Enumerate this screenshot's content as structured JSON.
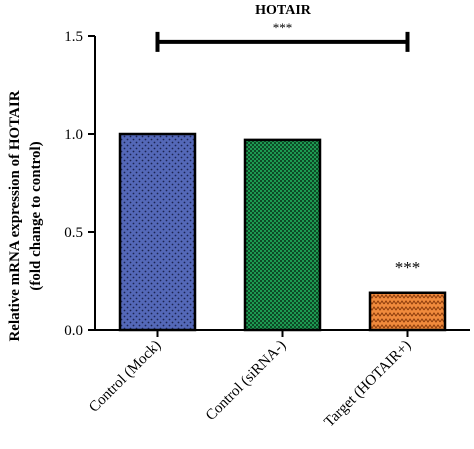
{
  "chart_data": {
    "type": "bar",
    "title": "HOTAIR",
    "ylabel_line1": "Relative mRNA expression of HOTAIR",
    "ylabel_line2": "(fold change to control)",
    "xlabel": "",
    "ylim": [
      0,
      1.5
    ],
    "yticks": [
      "0.0",
      "0.5",
      "1.0",
      "1.5"
    ],
    "categories": [
      "Control (Mock)",
      "Control (siRNA-)",
      "Target (HOTAIR+)"
    ],
    "values": [
      1.0,
      0.97,
      0.19
    ],
    "bar_colors": [
      "#5468b8",
      "#1d9a52",
      "#f08a3c"
    ],
    "bar_annotations": [
      "",
      "",
      "***"
    ],
    "comparison": {
      "from": "Control (Mock)",
      "to": "Target (HOTAIR+)",
      "label": "***",
      "y": 1.47
    },
    "grid": false,
    "legend": "none"
  }
}
